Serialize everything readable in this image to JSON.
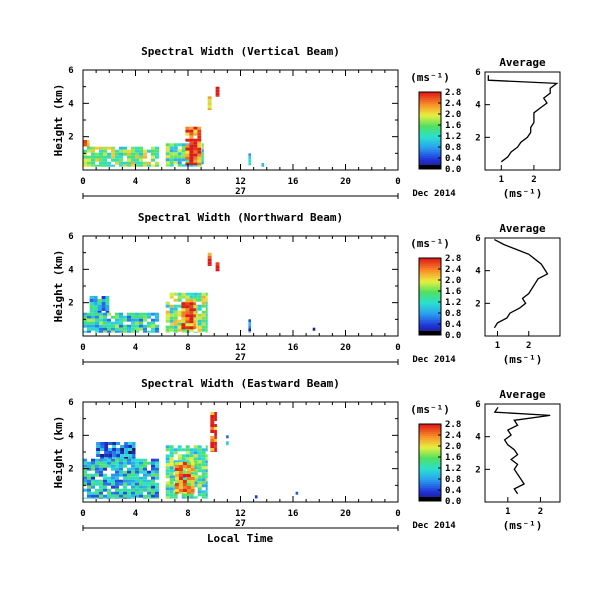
{
  "chart_data": [
    {
      "type": "heatmap",
      "title": "Spectral Width (Vertical Beam)",
      "ylabel": "Height (km)",
      "xlabel": "",
      "xlim": [
        0,
        24
      ],
      "ylim": [
        0,
        6
      ],
      "xticks": [
        "0",
        "4",
        "8",
        "12",
        "16",
        "20",
        "0"
      ],
      "yticks": [
        "2",
        "4",
        "6"
      ],
      "day_label": "27",
      "date_label": "Dec 2014",
      "colorbar": {
        "label": "(ms⁻¹)",
        "ticks": [
          "0.0",
          "0.4",
          "0.8",
          "1.2",
          "1.6",
          "2.0",
          "2.4",
          "2.8"
        ],
        "range": [
          0,
          2.8
        ]
      },
      "average": {
        "title": "Average",
        "xlabel": "(ms⁻¹)",
        "xticks": [
          "1",
          "2"
        ],
        "xlim": [
          0.5,
          2.8
        ],
        "height": [
          0.5,
          0.8,
          1.1,
          1.4,
          1.7,
          2.0,
          2.3,
          2.6,
          2.9,
          3.2,
          3.5,
          3.8,
          4.1,
          4.4,
          4.7,
          5.0,
          5.3,
          5.5,
          5.8
        ],
        "width": [
          1.0,
          1.2,
          1.3,
          1.5,
          1.6,
          1.8,
          1.9,
          1.9,
          2.0,
          2.0,
          2.0,
          2.2,
          2.4,
          2.3,
          2.5,
          2.5,
          2.7,
          0.6,
          0.6
        ]
      },
      "patches": [
        {
          "x0": 0,
          "x1": 5.8,
          "y0": 0.2,
          "y1": 1.4,
          "level": 1.6
        },
        {
          "x0": 0,
          "x1": 0.5,
          "y0": 1.4,
          "y1": 1.8,
          "level": 2.2
        },
        {
          "x0": 6.3,
          "x1": 9.2,
          "y0": 0.2,
          "y1": 1.6,
          "level": 1.4
        },
        {
          "x0": 7.8,
          "x1": 9.0,
          "y0": 0.3,
          "y1": 2.6,
          "level": 2.6
        },
        {
          "x0": 9.5,
          "x1": 9.8,
          "y0": 3.6,
          "y1": 4.6,
          "level": 2.4
        },
        {
          "x0": 10.1,
          "x1": 10.4,
          "y0": 4.4,
          "y1": 5.0,
          "level": 2.8
        },
        {
          "x0": 12.6,
          "x1": 12.8,
          "y0": 0.2,
          "y1": 1.0,
          "level": 0.6
        },
        {
          "x0": 13.6,
          "x1": 13.8,
          "y0": 0.2,
          "y1": 0.6,
          "level": 0.5
        }
      ]
    },
    {
      "type": "heatmap",
      "title": "Spectral Width (Northward Beam)",
      "ylabel": "Height (km)",
      "xlabel": "",
      "xlim": [
        0,
        24
      ],
      "ylim": [
        0,
        6
      ],
      "xticks": [
        "0",
        "4",
        "8",
        "12",
        "16",
        "20",
        "0"
      ],
      "yticks": [
        "2",
        "4",
        "6"
      ],
      "day_label": "27",
      "date_label": "Dec 2014",
      "colorbar": {
        "label": "(ms⁻¹)",
        "ticks": [
          "0.0",
          "0.4",
          "0.8",
          "1.2",
          "1.6",
          "2.0",
          "2.4",
          "2.8"
        ],
        "range": [
          0,
          2.8
        ]
      },
      "average": {
        "title": "Average",
        "xlabel": "(ms⁻¹)",
        "xticks": [
          "1",
          "2"
        ],
        "xlim": [
          0.6,
          3.0
        ],
        "height": [
          0.5,
          0.8,
          1.1,
          1.4,
          1.7,
          2.0,
          2.3,
          2.6,
          2.9,
          3.2,
          3.5,
          3.8,
          4.1,
          4.4,
          4.7,
          5.0,
          5.3,
          5.6,
          5.9
        ],
        "width": [
          0.9,
          1.0,
          1.3,
          1.4,
          1.7,
          1.9,
          1.8,
          2.0,
          2.1,
          2.2,
          2.3,
          2.6,
          2.5,
          2.4,
          2.2,
          2.0,
          1.6,
          1.2,
          0.9
        ]
      },
      "patches": [
        {
          "x0": 0,
          "x1": 5.8,
          "y0": 0.2,
          "y1": 1.4,
          "level": 1.2
        },
        {
          "x0": 0.5,
          "x1": 2.0,
          "y0": 1.4,
          "y1": 2.4,
          "level": 1.0
        },
        {
          "x0": 6.3,
          "x1": 9.5,
          "y0": 0.2,
          "y1": 2.6,
          "level": 1.6
        },
        {
          "x0": 7.5,
          "x1": 8.6,
          "y0": 0.4,
          "y1": 2.2,
          "level": 2.5
        },
        {
          "x0": 9.5,
          "x1": 9.8,
          "y0": 4.2,
          "y1": 5.0,
          "level": 2.6
        },
        {
          "x0": 10.1,
          "x1": 10.4,
          "y0": 3.8,
          "y1": 4.6,
          "level": 2.8
        },
        {
          "x0": 12.6,
          "x1": 12.8,
          "y0": 0.2,
          "y1": 1.0,
          "level": 0.6
        },
        {
          "x0": 17.5,
          "x1": 17.7,
          "y0": 0.3,
          "y1": 0.5,
          "level": 0.4
        }
      ]
    },
    {
      "type": "heatmap",
      "title": "Spectral Width (Eastward Beam)",
      "ylabel": "Height (km)",
      "xlabel": "Local Time",
      "xlim": [
        0,
        24
      ],
      "ylim": [
        0,
        6
      ],
      "xticks": [
        "0",
        "4",
        "8",
        "12",
        "16",
        "20",
        "0"
      ],
      "yticks": [
        "2",
        "4",
        "6"
      ],
      "day_label": "27",
      "date_label": "Dec 2014",
      "colorbar": {
        "label": "(ms⁻¹)",
        "ticks": [
          "0.0",
          "0.4",
          "0.8",
          "1.2",
          "1.6",
          "2.0",
          "2.4",
          "2.8"
        ],
        "range": [
          0,
          2.8
        ]
      },
      "average": {
        "title": "Average",
        "xlabel": "(ms⁻¹)",
        "xticks": [
          "1",
          "2"
        ],
        "xlim": [
          0.3,
          2.6
        ],
        "height": [
          0.5,
          0.8,
          1.1,
          1.4,
          1.7,
          2.0,
          2.3,
          2.6,
          2.9,
          3.2,
          3.5,
          3.8,
          4.1,
          4.4,
          4.7,
          5.0,
          5.3,
          5.5,
          5.8
        ],
        "width": [
          1.3,
          1.2,
          1.5,
          1.4,
          1.3,
          1.2,
          1.3,
          1.1,
          1.3,
          1.2,
          1.0,
          0.9,
          1.1,
          1.0,
          1.3,
          1.2,
          2.3,
          0.6,
          0.7
        ]
      },
      "patches": [
        {
          "x0": 0,
          "x1": 5.8,
          "y0": 0.2,
          "y1": 2.6,
          "level": 1.0
        },
        {
          "x0": 1.0,
          "x1": 4.0,
          "y0": 2.6,
          "y1": 3.6,
          "level": 0.6
        },
        {
          "x0": 6.3,
          "x1": 9.5,
          "y0": 0.2,
          "y1": 3.4,
          "level": 1.4
        },
        {
          "x0": 7.0,
          "x1": 8.5,
          "y0": 0.5,
          "y1": 2.4,
          "level": 2.2
        },
        {
          "x0": 9.7,
          "x1": 10.2,
          "y0": 3.0,
          "y1": 5.4,
          "level": 2.6
        },
        {
          "x0": 10.9,
          "x1": 11.1,
          "y0": 3.4,
          "y1": 4.0,
          "level": 1.2
        },
        {
          "x0": 13.1,
          "x1": 13.3,
          "y0": 0.2,
          "y1": 0.4,
          "level": 0.6
        },
        {
          "x0": 16.2,
          "x1": 16.4,
          "y0": 0.3,
          "y1": 0.8,
          "level": 0.3
        }
      ]
    }
  ]
}
